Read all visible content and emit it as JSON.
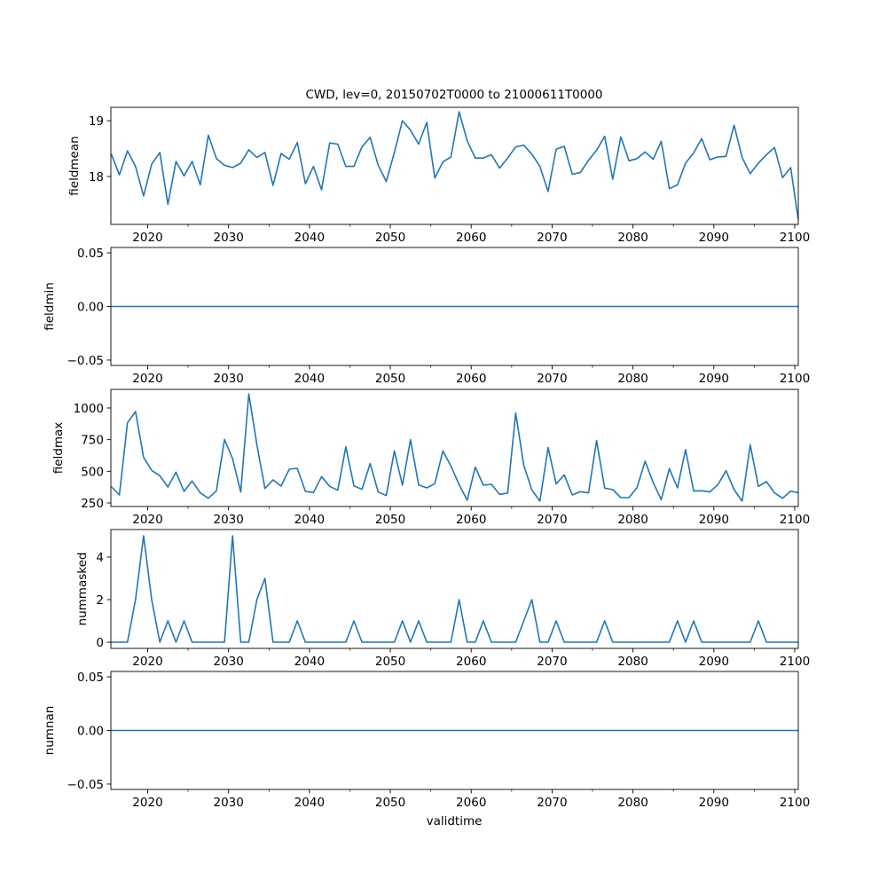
{
  "chart_data": {
    "type": "line",
    "title": "CWD, lev=0, 20150702T0000 to 21000611T0000",
    "xlabel": "validtime",
    "xlim": [
      2015.45,
      2100.44
    ],
    "x_ticks": [
      2020,
      2030,
      2040,
      2050,
      2060,
      2070,
      2080,
      2090,
      2100
    ],
    "x_tick_labels": [
      "2020",
      "2030",
      "2040",
      "2050",
      "2060",
      "2070",
      "2080",
      "2090",
      "2100"
    ],
    "x_minor_ticks": [
      2025,
      2035,
      2045,
      2055,
      2065,
      2075,
      2085,
      2095
    ],
    "line_color": "#1f77b4",
    "x_start": 2015.5,
    "x_step": 1,
    "grid": false,
    "subplots": [
      {
        "ylabel": "fieldmean",
        "ylim": [
          17.14,
          19.24
        ],
        "y_ticks": [
          18,
          19
        ],
        "y_tick_labels": [
          "18",
          "19"
        ],
        "values": [
          18.4,
          18.03,
          18.46,
          18.18,
          17.65,
          18.22,
          18.43,
          17.5,
          18.27,
          18.01,
          18.27,
          17.85,
          18.74,
          18.32,
          18.2,
          18.16,
          18.24,
          18.48,
          18.34,
          18.43,
          17.84,
          18.41,
          18.31,
          18.61,
          17.87,
          18.18,
          17.76,
          18.6,
          18.58,
          18.18,
          18.18,
          18.53,
          18.7,
          18.2,
          17.91,
          18.43,
          19.0,
          18.83,
          18.58,
          18.97,
          17.97,
          18.26,
          18.35,
          19.16,
          18.64,
          18.33,
          18.33,
          18.39,
          18.15,
          18.33,
          18.53,
          18.56,
          18.4,
          18.18,
          17.73,
          18.49,
          18.54,
          18.04,
          18.07,
          18.29,
          18.47,
          18.72,
          17.95,
          18.71,
          18.28,
          18.32,
          18.44,
          18.31,
          18.63,
          17.78,
          17.85,
          18.24,
          18.42,
          18.68,
          18.3,
          18.35,
          18.36,
          18.92,
          18.34,
          18.05,
          18.24,
          18.39,
          18.52,
          17.98,
          18.16,
          17.22
        ]
      },
      {
        "ylabel": "fieldmin",
        "ylim": [
          -0.055,
          0.055
        ],
        "y_ticks": [
          -0.05,
          0,
          0.05
        ],
        "y_tick_labels": [
          "−0.05",
          "0.00",
          "0.05"
        ],
        "values": [
          0,
          0,
          0,
          0,
          0,
          0,
          0,
          0,
          0,
          0,
          0,
          0,
          0,
          0,
          0,
          0,
          0,
          0,
          0,
          0,
          0,
          0,
          0,
          0,
          0,
          0,
          0,
          0,
          0,
          0,
          0,
          0,
          0,
          0,
          0,
          0,
          0,
          0,
          0,
          0,
          0,
          0,
          0,
          0,
          0,
          0,
          0,
          0,
          0,
          0,
          0,
          0,
          0,
          0,
          0,
          0,
          0,
          0,
          0,
          0,
          0,
          0,
          0,
          0,
          0,
          0,
          0,
          0,
          0,
          0,
          0,
          0,
          0,
          0,
          0,
          0,
          0,
          0,
          0,
          0,
          0,
          0,
          0,
          0,
          0,
          0
        ]
      },
      {
        "ylabel": "fieldmax",
        "ylim": [
          222,
          1147
        ],
        "y_ticks": [
          250,
          500,
          750,
          1000
        ],
        "y_tick_labels": [
          "250",
          "500",
          "750",
          "1000"
        ],
        "values": [
          378,
          313,
          883,
          972,
          610,
          507,
          465,
          376,
          493,
          341,
          423,
          329,
          287,
          346,
          752,
          600,
          336,
          1112,
          710,
          364,
          432,
          383,
          516,
          523,
          341,
          332,
          458,
          381,
          350,
          694,
          386,
          357,
          561,
          336,
          308,
          661,
          390,
          750,
          392,
          369,
          402,
          661,
          540,
          395,
          271,
          533,
          390,
          397,
          318,
          327,
          960,
          547,
          353,
          264,
          687,
          400,
          472,
          313,
          339,
          329,
          743,
          367,
          355,
          292,
          292,
          372,
          580,
          411,
          276,
          521,
          369,
          671,
          344,
          346,
          337,
          395,
          505,
          355,
          264,
          708,
          381,
          418,
          329,
          287,
          344,
          330
        ]
      },
      {
        "ylabel": "nummasked",
        "ylim": [
          -0.29,
          5.29
        ],
        "y_ticks": [
          0,
          2,
          4
        ],
        "y_tick_labels": [
          "0",
          "2",
          "4"
        ],
        "values": [
          0,
          0,
          0,
          2,
          5,
          2,
          0,
          1,
          0,
          1,
          0,
          0,
          0,
          0,
          0,
          5,
          0,
          0,
          2,
          3,
          0,
          0,
          0,
          1,
          0,
          0,
          0,
          0,
          0,
          0,
          1,
          0,
          0,
          0,
          0,
          0,
          1,
          0,
          1,
          0,
          0,
          0,
          0,
          2,
          0,
          0,
          1,
          0,
          0,
          0,
          0,
          1,
          2,
          0,
          0,
          1,
          0,
          0,
          0,
          0,
          0,
          1,
          0,
          0,
          0,
          0,
          0,
          0,
          0,
          0,
          1,
          0,
          1,
          0,
          0,
          0,
          0,
          0,
          0,
          0,
          1,
          0,
          0,
          0,
          0,
          0
        ]
      },
      {
        "ylabel": "numnan",
        "ylim": [
          -0.055,
          0.055
        ],
        "y_ticks": [
          -0.05,
          0,
          0.05
        ],
        "y_tick_labels": [
          "−0.05",
          "0.00",
          "0.05"
        ],
        "values": [
          0,
          0,
          0,
          0,
          0,
          0,
          0,
          0,
          0,
          0,
          0,
          0,
          0,
          0,
          0,
          0,
          0,
          0,
          0,
          0,
          0,
          0,
          0,
          0,
          0,
          0,
          0,
          0,
          0,
          0,
          0,
          0,
          0,
          0,
          0,
          0,
          0,
          0,
          0,
          0,
          0,
          0,
          0,
          0,
          0,
          0,
          0,
          0,
          0,
          0,
          0,
          0,
          0,
          0,
          0,
          0,
          0,
          0,
          0,
          0,
          0,
          0,
          0,
          0,
          0,
          0,
          0,
          0,
          0,
          0,
          0,
          0,
          0,
          0,
          0,
          0,
          0,
          0,
          0,
          0,
          0,
          0,
          0,
          0,
          0,
          0
        ]
      }
    ]
  }
}
